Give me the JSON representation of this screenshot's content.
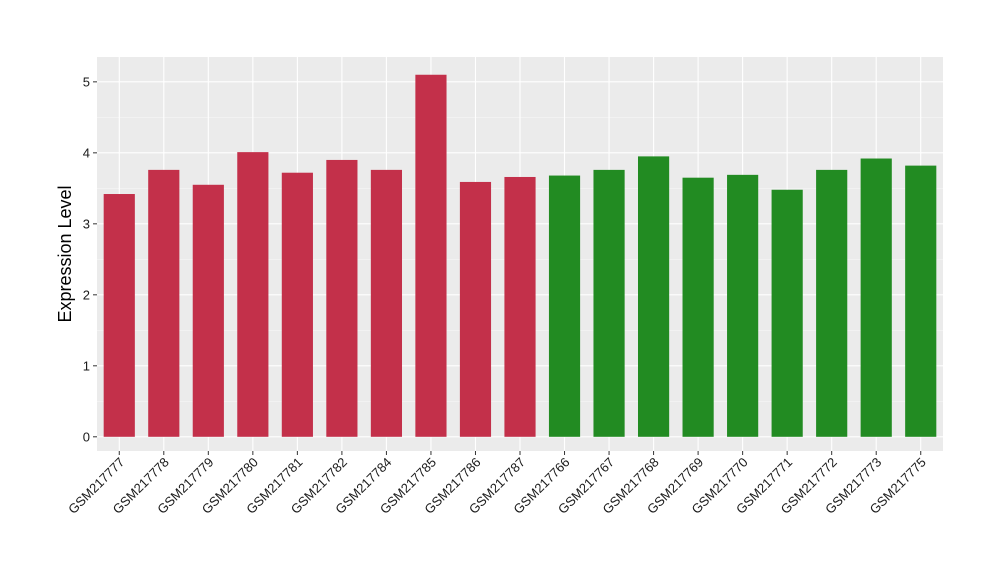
{
  "chart_data": {
    "type": "bar",
    "title": "",
    "xlabel": "",
    "ylabel": "Expression Level",
    "ylim": [
      -0.2,
      5.35
    ],
    "yticks": [
      0,
      1,
      2,
      3,
      4,
      5
    ],
    "grid": true,
    "legend": "none",
    "categories": [
      "GSM217777",
      "GSM217778",
      "GSM217779",
      "GSM217780",
      "GSM217781",
      "GSM217782",
      "GSM217784",
      "GSM217785",
      "GSM217786",
      "GSM217787",
      "GSM217766",
      "GSM217767",
      "GSM217768",
      "GSM217769",
      "GSM217770",
      "GSM217771",
      "GSM217772",
      "GSM217773",
      "GSM217775"
    ],
    "values": [
      3.42,
      3.76,
      3.55,
      4.01,
      3.72,
      3.9,
      3.76,
      5.1,
      3.59,
      3.66,
      3.68,
      3.76,
      3.95,
      3.65,
      3.69,
      3.48,
      3.76,
      3.92,
      3.82
    ],
    "groups": [
      "group1",
      "group1",
      "group1",
      "group1",
      "group1",
      "group1",
      "group1",
      "group1",
      "group1",
      "group1",
      "group2",
      "group2",
      "group2",
      "group2",
      "group2",
      "group2",
      "group2",
      "group2",
      "group2"
    ],
    "colors": {
      "group1": "#c3304a",
      "group2": "#228b22"
    }
  }
}
